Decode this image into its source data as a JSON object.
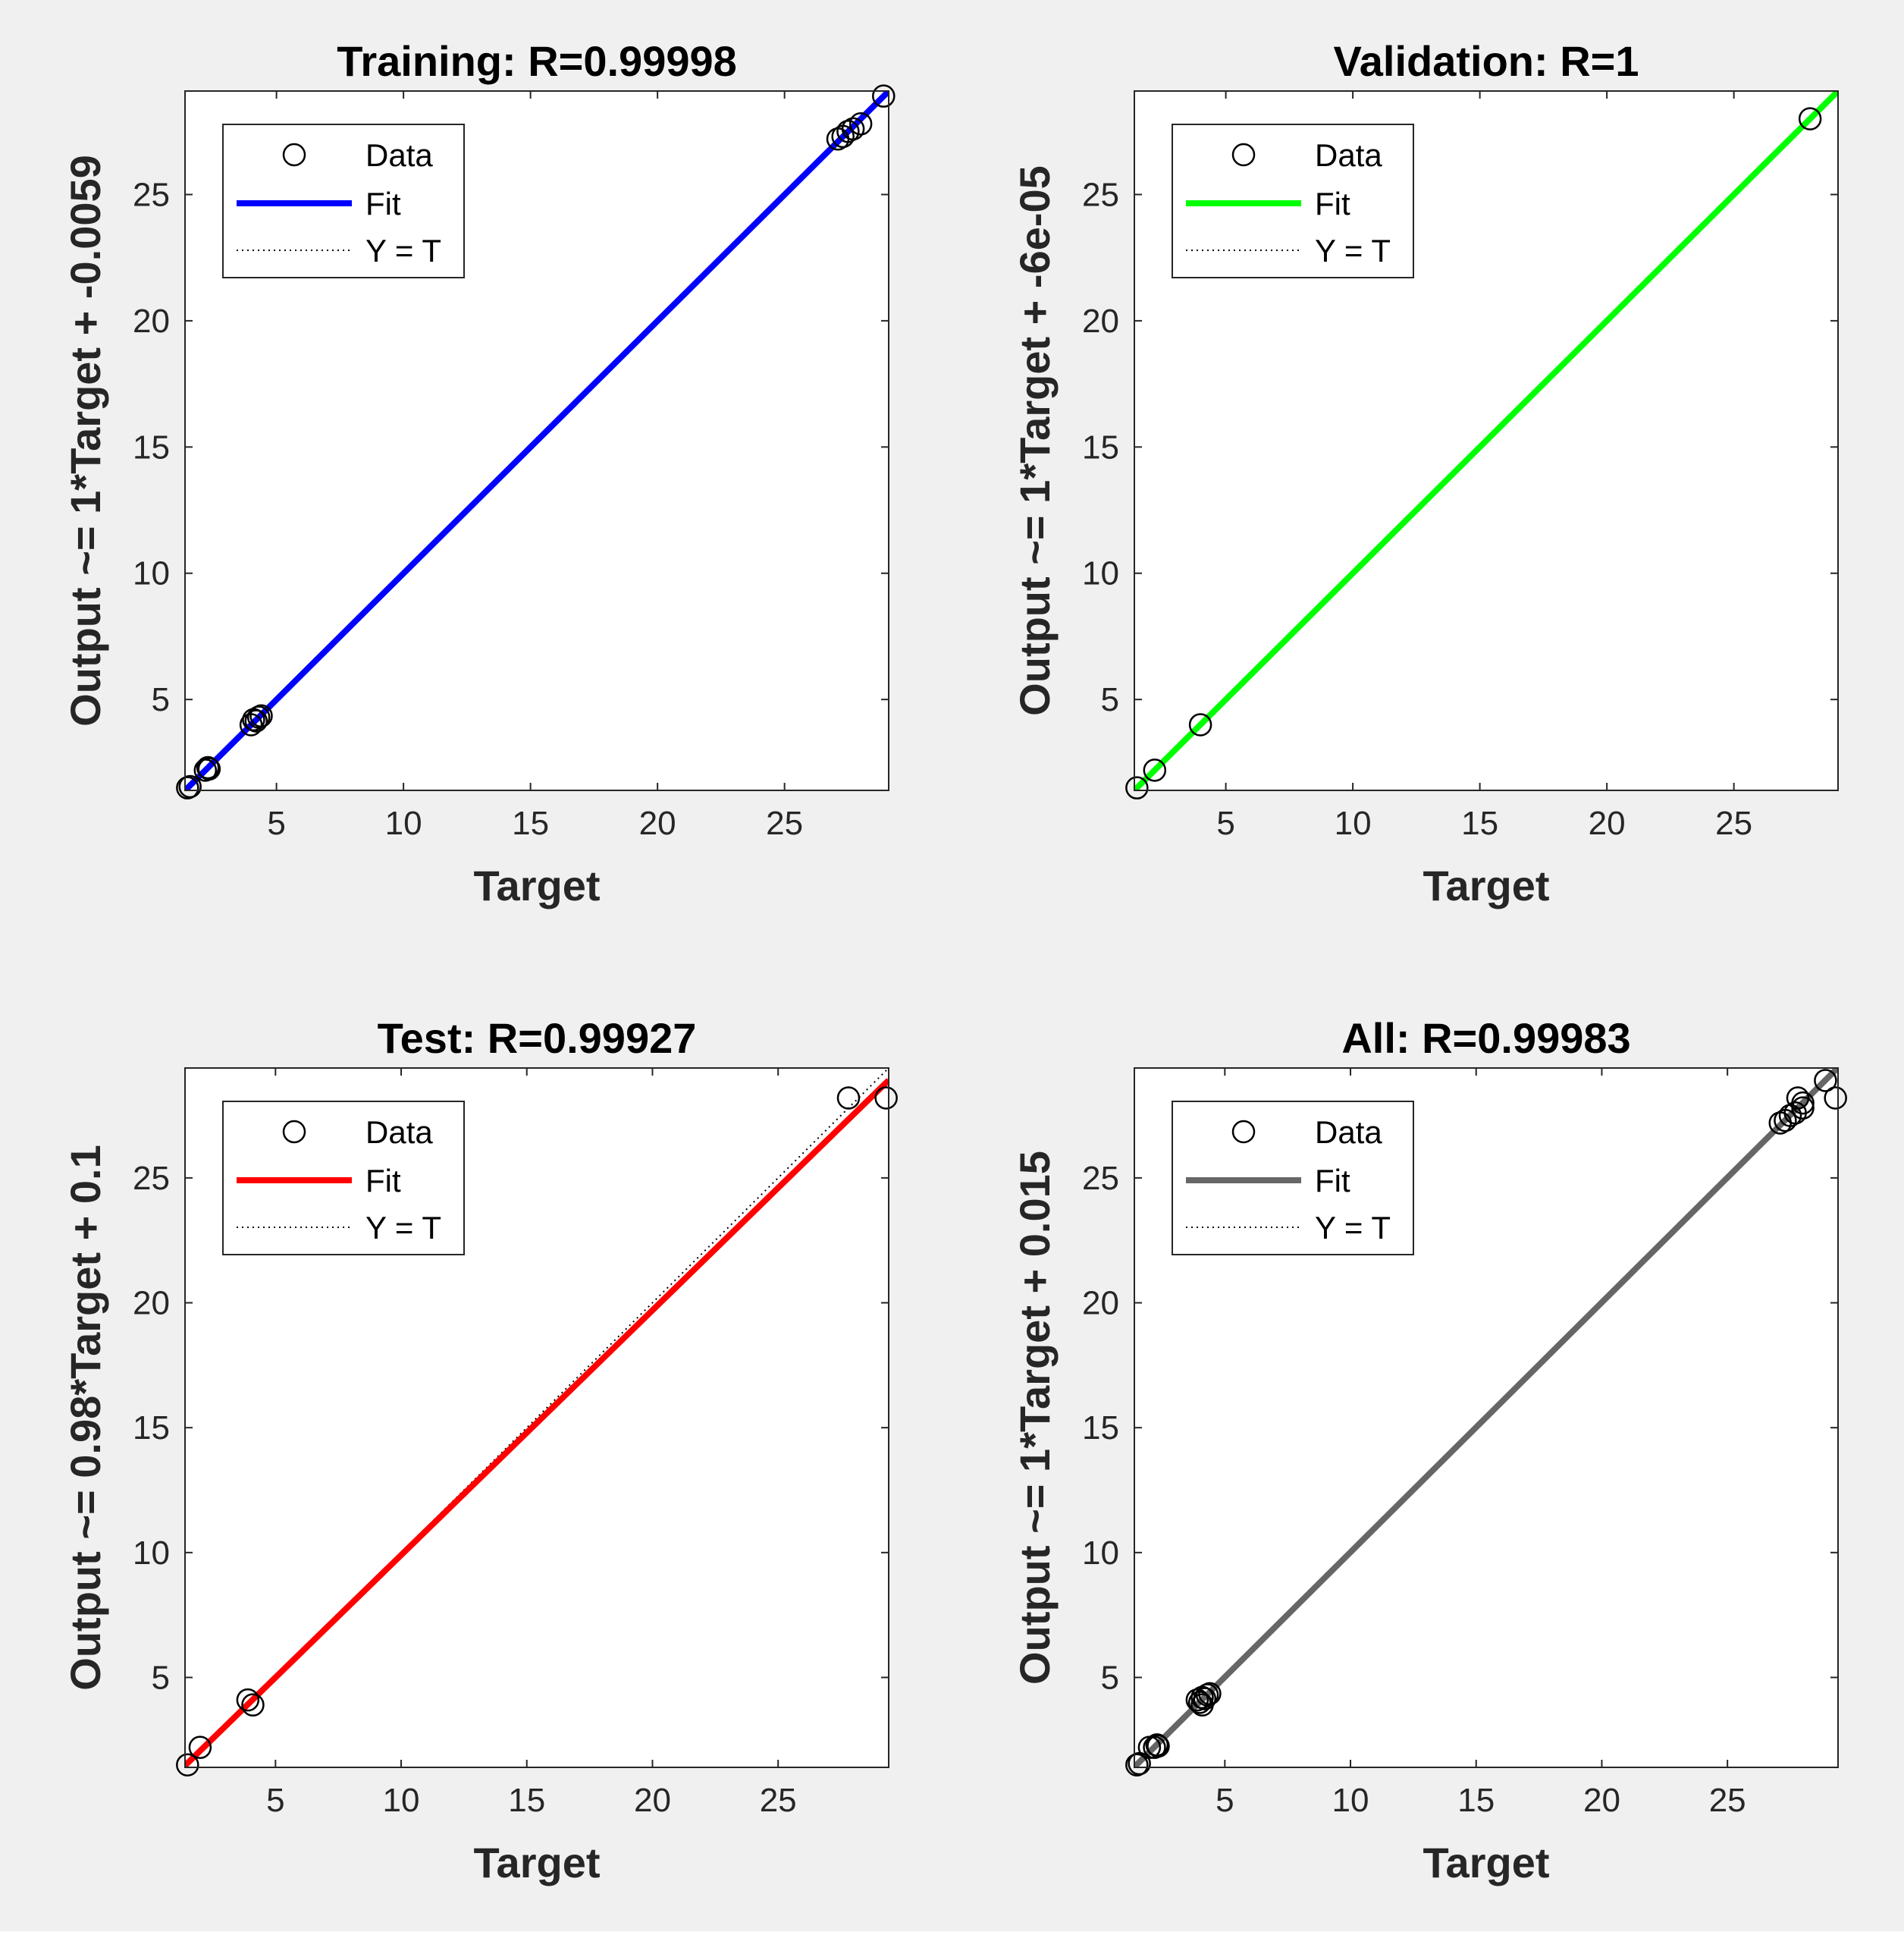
{
  "figure": {
    "background": "#f0f0f0"
  },
  "chart_data": [
    {
      "type": "scatter",
      "title": "Training: R=0.99998",
      "xlabel": "Target",
      "ylabel": "Output ~= 1*Target + -0.0059",
      "xlim": [
        1.4,
        29.1
      ],
      "ylim": [
        1.4,
        29.1
      ],
      "xticks": [
        5,
        10,
        15,
        20,
        25
      ],
      "yticks": [
        5,
        10,
        15,
        20,
        25
      ],
      "fit": {
        "slope": 1,
        "intercept": -0.0059,
        "color": "#0000ff"
      },
      "identity_line": true,
      "points": [
        [
          1.5,
          1.5
        ],
        [
          1.6,
          1.55
        ],
        [
          2.2,
          2.2
        ],
        [
          2.3,
          2.3
        ],
        [
          2.35,
          2.25
        ],
        [
          4.0,
          4.0
        ],
        [
          4.1,
          4.2
        ],
        [
          4.2,
          4.15
        ],
        [
          4.3,
          4.3
        ],
        [
          4.4,
          4.35
        ],
        [
          27.1,
          27.2
        ],
        [
          27.3,
          27.3
        ],
        [
          27.5,
          27.5
        ],
        [
          27.7,
          27.6
        ],
        [
          28.0,
          27.8
        ],
        [
          28.9,
          28.9
        ]
      ],
      "legend": {
        "position": "top-left",
        "entries": [
          "Data",
          "Fit",
          "Y = T"
        ]
      }
    },
    {
      "type": "scatter",
      "title": "Validation: R=1",
      "xlabel": "Target",
      "ylabel": "Output ~= 1*Target + -6e-05",
      "xlim": [
        1.4,
        29.1
      ],
      "ylim": [
        1.4,
        29.1
      ],
      "xticks": [
        5,
        10,
        15,
        20,
        25
      ],
      "yticks": [
        5,
        10,
        15,
        20,
        25
      ],
      "fit": {
        "slope": 1,
        "intercept": -6e-05,
        "color": "#00ff00"
      },
      "identity_line": true,
      "points": [
        [
          1.5,
          1.5
        ],
        [
          2.2,
          2.2
        ],
        [
          4.0,
          4.0
        ],
        [
          28.0,
          28.0
        ]
      ],
      "legend": {
        "position": "top-left",
        "entries": [
          "Data",
          "Fit",
          "Y = T"
        ]
      }
    },
    {
      "type": "scatter",
      "title": "Test: R=0.99927",
      "xlabel": "Target",
      "ylabel": "Output ~= 0.98*Target + 0.1",
      "xlim": [
        1.4,
        29.4
      ],
      "ylim": [
        1.4,
        29.4
      ],
      "xticks": [
        5,
        10,
        15,
        20,
        25
      ],
      "yticks": [
        5,
        10,
        15,
        20,
        25
      ],
      "fit": {
        "slope": 0.98,
        "intercept": 0.1,
        "color": "#ff0000"
      },
      "identity_line": true,
      "points": [
        [
          1.5,
          1.5
        ],
        [
          2.0,
          2.2
        ],
        [
          3.9,
          4.1
        ],
        [
          4.1,
          3.9
        ],
        [
          27.8,
          28.2
        ],
        [
          29.3,
          28.2
        ]
      ],
      "legend": {
        "position": "top-left",
        "entries": [
          "Data",
          "Fit",
          "Y = T"
        ]
      }
    },
    {
      "type": "scatter",
      "title": "All: R=0.99983",
      "xlabel": "Target",
      "ylabel": "Output ~= 1*Target + 0.015",
      "xlim": [
        1.4,
        29.4
      ],
      "ylim": [
        1.4,
        29.4
      ],
      "xticks": [
        5,
        10,
        15,
        20,
        25
      ],
      "yticks": [
        5,
        10,
        15,
        20,
        25
      ],
      "fit": {
        "slope": 1,
        "intercept": 0.015,
        "color": "#666666"
      },
      "identity_line": true,
      "points": [
        [
          1.5,
          1.5
        ],
        [
          1.6,
          1.55
        ],
        [
          2.0,
          2.2
        ],
        [
          2.2,
          2.2
        ],
        [
          2.3,
          2.3
        ],
        [
          2.35,
          2.25
        ],
        [
          3.9,
          4.1
        ],
        [
          4.0,
          4.0
        ],
        [
          4.1,
          3.9
        ],
        [
          4.1,
          4.2
        ],
        [
          4.2,
          4.15
        ],
        [
          4.3,
          4.3
        ],
        [
          4.4,
          4.35
        ],
        [
          27.1,
          27.2
        ],
        [
          27.3,
          27.3
        ],
        [
          27.5,
          27.5
        ],
        [
          27.7,
          27.6
        ],
        [
          27.8,
          28.2
        ],
        [
          28.0,
          27.8
        ],
        [
          28.0,
          28.0
        ],
        [
          28.9,
          28.9
        ],
        [
          29.3,
          28.2
        ]
      ],
      "legend": {
        "position": "top-left",
        "entries": [
          "Data",
          "Fit",
          "Y = T"
        ]
      }
    }
  ]
}
